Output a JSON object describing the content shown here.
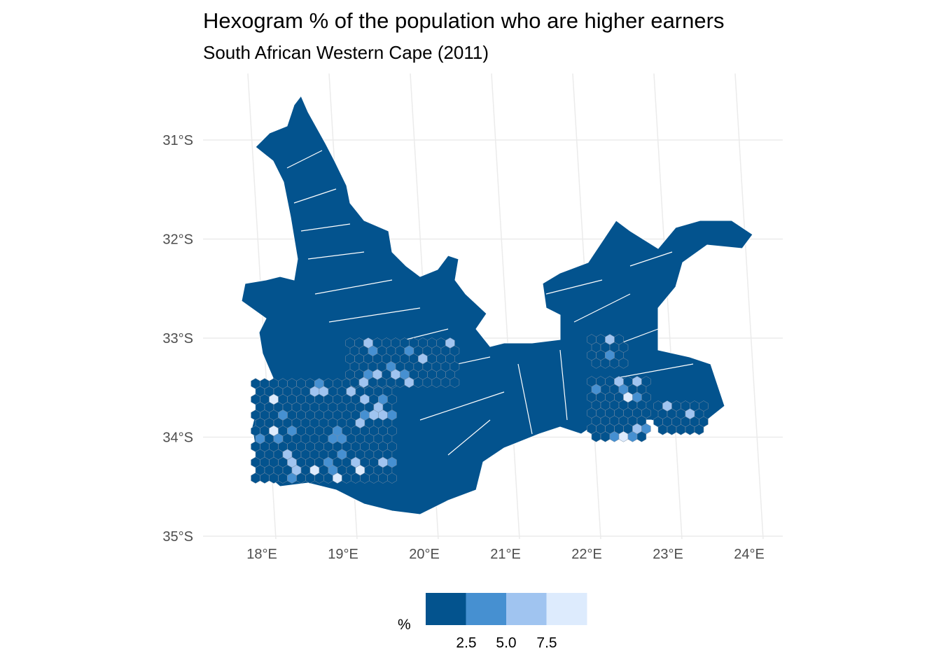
{
  "title": "Hexogram % of the population who are higher earners",
  "subtitle": "South African Western Cape (2011)",
  "chart_data": {
    "type": "map",
    "region": "Western Cape",
    "y_ticks": [
      "31°S",
      "32°S",
      "33°S",
      "34°S",
      "35°S"
    ],
    "x_ticks": [
      "18°E",
      "19°E",
      "20°E",
      "21°E",
      "22°E",
      "23°E",
      "24°E"
    ],
    "lat_values": [
      -31,
      -32,
      -33,
      -34,
      -35
    ],
    "lon_values": [
      18,
      19,
      20,
      21,
      22,
      23,
      24
    ],
    "grid": true,
    "legend": {
      "title": "%",
      "position": "bottom",
      "labels": [
        "2.5",
        "5.0",
        "7.5"
      ],
      "bins": [
        [
          0,
          2.5
        ],
        [
          2.5,
          5.0
        ],
        [
          5.0,
          7.5
        ],
        [
          7.5,
          10
        ]
      ],
      "colors": [
        "#03538e",
        "#4690d1",
        "#a0c4f0",
        "#ddebfd"
      ]
    },
    "base_fill": "#03538e",
    "boundary_color": "#ffffff"
  }
}
